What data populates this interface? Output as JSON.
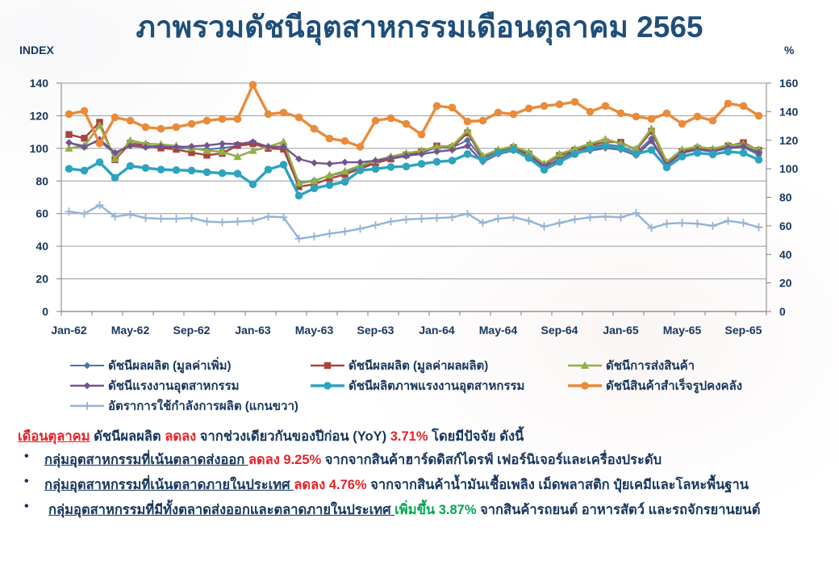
{
  "page": {
    "title": "ภาพรวมดัชนีอุตสาหกรรมเดือนตุลาคม 2565"
  },
  "chart_data": {
    "type": "line",
    "left_axis": {
      "label": "INDEX",
      "min": 0,
      "max": 140,
      "step": 20,
      "ticks": [
        0,
        20,
        40,
        60,
        80,
        100,
        120,
        140
      ]
    },
    "right_axis": {
      "label": "%",
      "min": 0,
      "max": 160,
      "step": 20,
      "ticks": [
        0,
        20,
        40,
        60,
        80,
        100,
        120,
        140,
        160
      ]
    },
    "grid": "horizontal",
    "legend_position": "bottom",
    "x": [
      "Jan-62",
      "Feb-62",
      "Mar-62",
      "Apr-62",
      "May-62",
      "Jun-62",
      "Jul-62",
      "Aug-62",
      "Sep-62",
      "Oct-62",
      "Nov-62",
      "Dec-62",
      "Jan-63",
      "Feb-63",
      "Mar-63",
      "Apr-63",
      "May-63",
      "Jun-63",
      "Jul-63",
      "Aug-63",
      "Sep-63",
      "Oct-63",
      "Nov-63",
      "Dec-63",
      "Jan-64",
      "Feb-64",
      "Mar-64",
      "Apr-64",
      "May-64",
      "Jun-64",
      "Jul-64",
      "Aug-64",
      "Sep-64",
      "Oct-64",
      "Nov-64",
      "Dec-64",
      "Jan-65",
      "Feb-65",
      "Mar-65",
      "Apr-65",
      "May-65",
      "Jun-65",
      "Jul-65",
      "Aug-65",
      "Sep-65",
      "Oct-65"
    ],
    "x_label_indices": [
      0,
      4,
      8,
      12,
      16,
      20,
      24,
      28,
      32,
      36,
      40,
      44
    ],
    "series": [
      {
        "name": "ดัชนีผลผลิต (มูลค่าเพิ่ม)",
        "axis": "left",
        "color": "#4A74A8",
        "marker": "diamond",
        "line_width": 2,
        "values": [
          103.5,
          101.5,
          104.5,
          96.5,
          101.8,
          101.2,
          101.5,
          100.2,
          99.9,
          99.4,
          100.2,
          101.5,
          102.6,
          100.5,
          101.0,
          79.1,
          80.4,
          83.2,
          85.3,
          88.6,
          91.4,
          93.5,
          95.2,
          97.1,
          100.7,
          100.5,
          105.0,
          93.3,
          97.6,
          99.5,
          95.7,
          88.0,
          94.1,
          98.1,
          100.8,
          102.4,
          101.3,
          97.3,
          106.0,
          89.5,
          97.5,
          99.5,
          98.0,
          100.0,
          100.8,
          96.0
        ]
      },
      {
        "name": "ดัชนีผลผลิต (มูลค่าผลผลิต)",
        "axis": "left",
        "color": "#A8423F",
        "marker": "square",
        "line_width": 2.4,
        "values": [
          108.5,
          106.2,
          116.0,
          93.0,
          103.2,
          101.8,
          100.2,
          99.4,
          97.4,
          95.8,
          96.9,
          101.8,
          102.9,
          100.0,
          99.5,
          76.5,
          78.0,
          81.5,
          84.0,
          87.5,
          91.0,
          93.5,
          96.0,
          98.0,
          101.5,
          100.5,
          109.5,
          94.1,
          98.1,
          100.5,
          96.5,
          89.6,
          95.7,
          98.9,
          101.8,
          104.0,
          103.7,
          98.9,
          110.5,
          90.6,
          98.0,
          100.0,
          98.8,
          101.5,
          103.5,
          98.8
        ]
      },
      {
        "name": "ดัชนีการส่งสินค้า",
        "axis": "left",
        "color": "#93AF48",
        "marker": "triangle",
        "line_width": 2.6,
        "values": [
          100.0,
          101.5,
          114.0,
          93.6,
          104.8,
          102.9,
          102.4,
          101.5,
          100.2,
          98.6,
          97.9,
          94.9,
          98.6,
          101.0,
          104.0,
          78.5,
          80.0,
          83.5,
          86.0,
          89.5,
          92.5,
          95.0,
          97.0,
          98.5,
          101.0,
          101.5,
          111.0,
          95.4,
          99.2,
          101.3,
          97.6,
          90.6,
          96.5,
          99.7,
          102.9,
          105.6,
          102.9,
          99.7,
          112.0,
          91.7,
          99.3,
          101.0,
          99.7,
          102.0,
          102.5,
          99.3
        ]
      },
      {
        "name": "ดัชนีแรงงานอุตสาหกรรม",
        "axis": "left",
        "color": "#74548E",
        "marker": "diamond",
        "line_width": 2.4,
        "values": [
          103.5,
          100.7,
          105.5,
          97.4,
          101.5,
          100.7,
          101.2,
          100.7,
          101.2,
          101.8,
          102.9,
          102.6,
          104.0,
          101.0,
          101.0,
          93.5,
          91.1,
          90.5,
          91.5,
          91.5,
          92.5,
          94.0,
          95.5,
          96.5,
          98.0,
          99.0,
          101.5,
          91.7,
          96.5,
          98.6,
          94.9,
          89.0,
          92.8,
          97.0,
          98.6,
          100.2,
          99.2,
          95.7,
          104.5,
          89.8,
          97.2,
          99.3,
          98.0,
          100.5,
          101.3,
          97.5
        ]
      },
      {
        "name": "ดัชนีผลิตภาพแรงงานอุตสาหกรรม",
        "axis": "left",
        "color": "#2EA3BE",
        "marker": "circle",
        "line_width": 3.4,
        "values": [
          87.5,
          86.4,
          91.5,
          82.0,
          89.2,
          88.0,
          87.0,
          86.7,
          86.4,
          85.4,
          84.8,
          84.5,
          78.0,
          87.0,
          90.0,
          71.0,
          75.5,
          77.5,
          79.5,
          86.5,
          87.4,
          88.6,
          88.9,
          90.5,
          91.8,
          92.5,
          96.5,
          92.8,
          97.3,
          99.2,
          94.1,
          86.9,
          91.7,
          96.5,
          99.7,
          101.3,
          100.2,
          96.5,
          99.0,
          88.3,
          95.0,
          97.2,
          96.3,
          98.0,
          97.2,
          93.0
        ]
      },
      {
        "name": "ดัชนีสินค้าสำเร็จรูปคงคลัง",
        "axis": "left",
        "color": "#E98B3A",
        "marker": "circle",
        "line_width": 3.4,
        "values": [
          121,
          123,
          103,
          119,
          117,
          113,
          112,
          113,
          115,
          117,
          118,
          118,
          139,
          121,
          122,
          119,
          112,
          106,
          104.5,
          101,
          117,
          118.5,
          115,
          108.5,
          126,
          125,
          116.5,
          117,
          122,
          121,
          124.5,
          126,
          127,
          128.5,
          122.5,
          126,
          121.5,
          119.5,
          118,
          121.5,
          115,
          119.5,
          117,
          127.5,
          126,
          120
        ]
      },
      {
        "name": "อัตราการใช้กำลังการผลิต (แกนขวา)",
        "axis": "right",
        "color": "#95B3D7",
        "marker": "plus",
        "line_width": 2.4,
        "values": [
          70,
          68.5,
          74.5,
          66.5,
          68,
          65.5,
          65,
          65,
          65.5,
          63,
          62.5,
          63,
          63.5,
          66.5,
          66,
          51,
          52.5,
          54.5,
          56,
          58,
          60.5,
          63,
          64.5,
          65,
          65.5,
          66,
          68.5,
          62,
          65,
          66,
          63.5,
          59.5,
          62,
          64.5,
          66,
          66.5,
          66,
          69,
          58.5,
          61.5,
          62,
          61.5,
          60,
          63.5,
          62,
          59
        ]
      }
    ]
  },
  "commentary": {
    "lines": [
      {
        "segments": [
          {
            "text": "เดือนตุลาคม",
            "style": "red-u"
          },
          {
            "text": " ดัชนีผลผลิต ",
            "style": "navy"
          },
          {
            "text": "ลดลง",
            "style": "red"
          },
          {
            "text": " จากช่วงเดียวกันของปีก่อน (YoY) ",
            "style": "navy"
          },
          {
            "text": "3.71%",
            "style": "red"
          },
          {
            "text": " โดยมีปัจจัย ดังนี้",
            "style": "navy"
          }
        ]
      },
      {
        "segments": [
          {
            "text": "กลุ่มอุตสาหกรรมที่เน้นตลาดส่งออก ",
            "style": "navy-u"
          },
          {
            "text": "ลดลง 9.25%",
            "style": "red"
          },
          {
            "text": " จากจากสินค้าฮาร์ดดิสก์ไดรฟ์ เฟอร์นิเจอร์และเครื่องประดับ",
            "style": "navy"
          }
        ]
      },
      {
        "segments": [
          {
            "text": "กลุ่มอุตสาหกรรมที่เน้นตลาดภายในประเทศ ",
            "style": "navy-u"
          },
          {
            "text": "ลดลง 4.76%",
            "style": "red"
          },
          {
            "text": " จากจากสินค้าน้ำมันเชื้อเพลิง เม็ดพลาสติก ปุ๋ยเคมีและโลหะพื้นฐาน",
            "style": "navy"
          }
        ]
      },
      {
        "segments": [
          {
            "text": "กลุ่มอุตสาหกรรมที่มีทั้งตลาดส่งออกและตลาดภายในประเทศ ",
            "style": "navy-u"
          },
          {
            "text": "เพิ่มขึ้น 3.87%",
            "style": "green"
          },
          {
            "text": " จากสินค้ารถยนต์ อาหารสัตว์ และรถจักรยานยนต์",
            "style": "navy"
          }
        ]
      }
    ],
    "bullet_char": "•"
  }
}
